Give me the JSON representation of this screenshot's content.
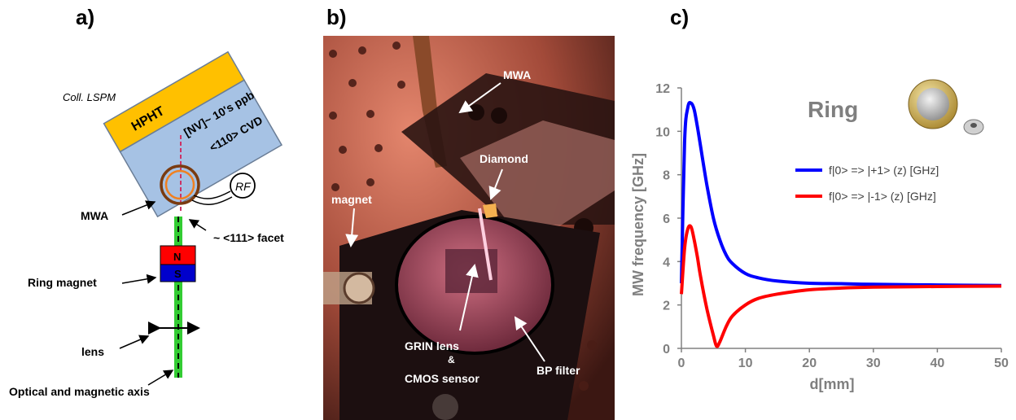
{
  "panels": {
    "a": "a)",
    "b": "b)",
    "c": "c)"
  },
  "panel_a": {
    "coll": "Coll. LSPM",
    "hpht": "HPHT",
    "nv": "[NV]~ 10's ppb",
    "cvd": "<110> CVD",
    "rf": "RF",
    "mwa": "MWA",
    "facet": "~ <111> facet",
    "magnet_n": "N",
    "magnet_s": "S",
    "ring_magnet": "Ring magnet",
    "lens": "lens",
    "axis": "Optical and magnetic axis",
    "colors": {
      "hpht": "#ffc000",
      "cvd": "#a6c2e4",
      "north": "#ff0000",
      "south": "#0000cc",
      "axis": "#33cc33"
    }
  },
  "panel_b": {
    "mwa": "MWA",
    "diamond": "Diamond",
    "magnet": "magnet",
    "grin": "GRIN lens",
    "amp": "&",
    "cmos": "CMOS sensor",
    "bp": "BP filter"
  },
  "chart_data": {
    "type": "line",
    "title": "",
    "xlabel": "d[mm]",
    "ylabel": "MW frequency [GHz]",
    "annotation": "Ring",
    "xlim": [
      0,
      50
    ],
    "ylim": [
      0,
      12
    ],
    "xticks": [
      0,
      10,
      20,
      30,
      40,
      50
    ],
    "yticks": [
      0,
      2,
      4,
      6,
      8,
      10,
      12
    ],
    "grid": false,
    "legend_position": "right",
    "series": [
      {
        "name": "f|0> => |+1> (z) [GHz]",
        "color": "#0000ff",
        "x": [
          0,
          0.5,
          1,
          1.5,
          2,
          2.5,
          3,
          4,
          5,
          6,
          7,
          8,
          10,
          12,
          15,
          20,
          25,
          30,
          40,
          50
        ],
        "y": [
          3.0,
          9.5,
          11.1,
          11.3,
          11.0,
          10.2,
          9.3,
          7.5,
          6.0,
          5.0,
          4.3,
          3.9,
          3.45,
          3.25,
          3.1,
          3.0,
          2.98,
          2.95,
          2.92,
          2.9
        ]
      },
      {
        "name": "f|0> => |-1> (z) [GHz]",
        "color": "#ff0000",
        "x": [
          0,
          0.5,
          1,
          1.5,
          2,
          2.5,
          3,
          4,
          5,
          5.5,
          6,
          7,
          8,
          10,
          12,
          15,
          20,
          25,
          30,
          40,
          50
        ],
        "y": [
          2.5,
          4.6,
          5.5,
          5.6,
          5.0,
          4.2,
          3.3,
          1.8,
          0.6,
          0.1,
          0.3,
          1.0,
          1.5,
          2.0,
          2.3,
          2.5,
          2.7,
          2.78,
          2.82,
          2.85,
          2.87
        ]
      }
    ]
  }
}
